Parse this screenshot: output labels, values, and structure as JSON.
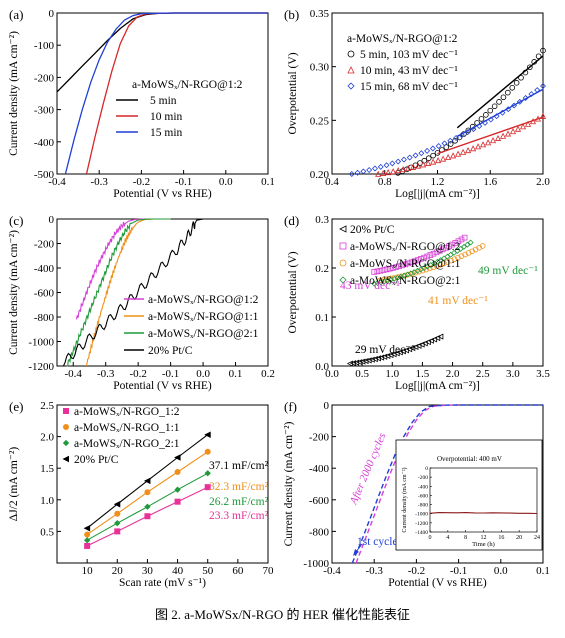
{
  "caption": "图 2. a-MoWSx/N-RGO 的 HER 催化性能表征",
  "chart_data": [
    {
      "id": "a",
      "panel_label": "(a)",
      "type": "line",
      "xlabel": "Potential (V vs RHE)",
      "ylabel": "Current density (mA cm⁻²)",
      "xlim": [
        -0.4,
        0.1
      ],
      "ylim": [
        -500,
        0
      ],
      "xticks": [
        -0.4,
        -0.3,
        -0.2,
        -0.1,
        0.0,
        0.1
      ],
      "yticks": [
        -500,
        -400,
        -300,
        -200,
        -100,
        0
      ],
      "legend_title": "a-MoWSₓ/N-RGO@1:2",
      "series": [
        {
          "name": "5 min",
          "color": "#000000",
          "x": [
            -0.4,
            -0.37,
            -0.34,
            -0.31,
            -0.28,
            -0.25,
            -0.22,
            -0.19,
            -0.16,
            -0.12,
            -0.08,
            0.0,
            0.1
          ],
          "y": [
            -245,
            -205,
            -165,
            -125,
            -85,
            -48,
            -18,
            -5,
            -1,
            0,
            0,
            0,
            0
          ]
        },
        {
          "name": "10 min",
          "color": "#d62728",
          "x": [
            -0.33,
            -0.31,
            -0.29,
            -0.27,
            -0.25,
            -0.23,
            -0.21,
            -0.19,
            -0.16,
            -0.12,
            0.0,
            0.1
          ],
          "y": [
            -500,
            -385,
            -280,
            -180,
            -95,
            -40,
            -12,
            -3,
            -1,
            0,
            0,
            0
          ]
        },
        {
          "name": "15 min",
          "color": "#1f3fd6",
          "x": [
            -0.38,
            -0.36,
            -0.34,
            -0.32,
            -0.3,
            -0.28,
            -0.26,
            -0.24,
            -0.22,
            -0.2,
            -0.17,
            -0.12,
            0.0,
            0.1
          ],
          "y": [
            -500,
            -395,
            -300,
            -215,
            -145,
            -90,
            -50,
            -22,
            -8,
            -2,
            -1,
            0,
            0,
            0
          ]
        }
      ]
    },
    {
      "id": "b",
      "panel_label": "(b)",
      "type": "scatter",
      "xlabel": "Log[|j|(mA cm⁻²)]",
      "ylabel": "Overpotential (V)",
      "xlim": [
        0.4,
        2.0
      ],
      "ylim": [
        0.2,
        0.35
      ],
      "xticks": [
        0.4,
        0.8,
        1.2,
        1.6,
        2.0
      ],
      "yticks": [
        0.2,
        0.25,
        0.3,
        0.35
      ],
      "legend_title": "a-MoWSₓ/N-RGO@1:2",
      "series": [
        {
          "name": "5 min, 103 mV dec⁻¹",
          "color": "#000000",
          "marker": "circle",
          "x_range": [
            0.9,
            2.0
          ],
          "y_range": [
            0.201,
            0.315
          ],
          "fit_x": [
            1.35,
            2.0
          ],
          "fit_y": [
            0.243,
            0.31
          ]
        },
        {
          "name": "10 min, 43 mV dec⁻¹",
          "color": "#d62728",
          "marker": "triangle",
          "x_range": [
            0.75,
            2.0
          ],
          "y_range": [
            0.2,
            0.254
          ],
          "fit_x": [
            1.2,
            2.0
          ],
          "fit_y": [
            0.219,
            0.253
          ]
        },
        {
          "name": "15 min, 68 mV dec⁻¹",
          "color": "#1f3fd6",
          "marker": "diamond",
          "x_range": [
            0.55,
            2.0
          ],
          "y_range": [
            0.2,
            0.282
          ],
          "fit_x": [
            1.35,
            2.0
          ],
          "fit_y": [
            0.235,
            0.279
          ]
        }
      ]
    },
    {
      "id": "c",
      "panel_label": "(c)",
      "type": "line",
      "xlabel": "Potential (V vs RHE)",
      "ylabel": "Current density (mA cm⁻²)",
      "xlim": [
        -0.45,
        0.2
      ],
      "ylim": [
        -1200,
        0
      ],
      "xticks": [
        -0.4,
        -0.3,
        -0.2,
        -0.1,
        0.0,
        0.1,
        0.2
      ],
      "yticks": [
        -1200,
        -1000,
        -800,
        -600,
        -400,
        -200,
        0
      ],
      "series": [
        {
          "name": "a-MoWSₓ/N-RGO@1:2",
          "color": "#d63fd6",
          "x": [
            -0.39,
            -0.37,
            -0.35,
            -0.33,
            -0.31,
            -0.29,
            -0.27,
            -0.25,
            -0.23,
            -0.21,
            -0.18,
            -0.1
          ],
          "y": [
            -820,
            -680,
            -540,
            -410,
            -300,
            -200,
            -115,
            -55,
            -18,
            -4,
            0,
            0
          ]
        },
        {
          "name": "a-MoWSₓ/N-RGO@1:1",
          "color": "#f0901a",
          "x": [
            -0.36,
            -0.34,
            -0.32,
            -0.3,
            -0.28,
            -0.26,
            -0.24,
            -0.22,
            -0.2,
            -0.18,
            -0.15,
            -0.1
          ],
          "y": [
            -1200,
            -1000,
            -810,
            -630,
            -460,
            -310,
            -180,
            -85,
            -25,
            -5,
            0,
            0
          ]
        },
        {
          "name": "a-MoWSₓ/N-RGO@2:1",
          "color": "#1f9a3a",
          "x": [
            -0.42,
            -0.4,
            -0.38,
            -0.36,
            -0.34,
            -0.32,
            -0.3,
            -0.28,
            -0.26,
            -0.24,
            -0.22,
            -0.2,
            -0.17,
            -0.1
          ],
          "y": [
            -1200,
            -1080,
            -950,
            -820,
            -690,
            -560,
            -430,
            -300,
            -190,
            -100,
            -35,
            -8,
            0,
            0
          ]
        },
        {
          "name": "20% Pt/C",
          "color": "#000000",
          "x": [
            -0.44,
            -0.4,
            -0.36,
            -0.32,
            -0.28,
            -0.24,
            -0.2,
            -0.16,
            -0.12,
            -0.08,
            -0.05,
            -0.03,
            -0.02,
            0.0,
            0.1
          ],
          "y": [
            -1200,
            -1100,
            -1000,
            -900,
            -800,
            -700,
            -590,
            -480,
            -370,
            -250,
            -150,
            -60,
            -10,
            0,
            0
          ]
        }
      ]
    },
    {
      "id": "d",
      "panel_label": "(d)",
      "type": "scatter",
      "xlabel": "Log[|j|(mA cm⁻²)]",
      "ylabel": "Overpotential (V)",
      "xlim": [
        0.0,
        3.5
      ],
      "ylim": [
        0.0,
        0.3
      ],
      "xticks": [
        0.0,
        0.5,
        1.0,
        1.5,
        2.0,
        2.5,
        3.0,
        3.5
      ],
      "yticks": [
        0.0,
        0.1,
        0.2,
        0.3
      ],
      "series": [
        {
          "name": "20% Pt/C",
          "color": "#000000",
          "marker": "triangle-left",
          "x_range": [
            0.3,
            1.8
          ],
          "y_range": [
            0.005,
            0.06
          ],
          "label": "29 mV dec⁻¹"
        },
        {
          "name": "a-MoWSₓ/N-RGO@1:2",
          "color": "#d63fd6",
          "marker": "square",
          "x_range": [
            0.7,
            2.2
          ],
          "y_range": [
            0.192,
            0.262
          ],
          "label": "43 mV dec⁻¹"
        },
        {
          "name": "a-MoWSₓ/N-RGO@1:1",
          "color": "#f0901a",
          "marker": "circle",
          "x_range": [
            0.8,
            2.5
          ],
          "y_range": [
            0.175,
            0.245
          ],
          "label": "41 mV dec⁻¹"
        },
        {
          "name": "a-MoWSₓ/N-RGO@2:1",
          "color": "#1f9a3a",
          "marker": "diamond",
          "x_range": [
            0.7,
            2.3
          ],
          "y_range": [
            0.168,
            0.252
          ],
          "label": "49 mV dec⁻¹"
        }
      ]
    },
    {
      "id": "e",
      "panel_label": "(e)",
      "type": "scatter",
      "xlabel": "Scan rate (mV s⁻¹)",
      "ylabel": "ΔJ/2 (mA cm⁻²)",
      "xlim": [
        0,
        70
      ],
      "ylim": [
        0.0,
        2.5
      ],
      "xticks": [
        10,
        20,
        30,
        40,
        50,
        60,
        70
      ],
      "yticks": [
        0.5,
        1.0,
        1.5,
        2.0,
        2.5
      ],
      "x": [
        10,
        20,
        30,
        40,
        50
      ],
      "series": [
        {
          "name": "a-MoWSₓ/N-RGO_1:2",
          "color": "#e8329a",
          "marker": "square",
          "y": [
            0.27,
            0.5,
            0.74,
            0.97,
            1.2
          ],
          "label": "23.3 mF/cm²"
        },
        {
          "name": "a-MoWSₓ/N-RGO_1:1",
          "color": "#f0901a",
          "marker": "circle",
          "y": [
            0.45,
            0.78,
            1.12,
            1.44,
            1.76
          ],
          "label": "32.3 mF/cm²"
        },
        {
          "name": "a-MoWSₓ/N-RGO_2:1",
          "color": "#1f9a3a",
          "marker": "diamond",
          "y": [
            0.36,
            0.63,
            0.89,
            1.16,
            1.42
          ],
          "label": "26.2 mF/cm²"
        },
        {
          "name": "20% Pt/C",
          "color": "#000000",
          "marker": "triangle-left",
          "y": [
            0.55,
            0.93,
            1.3,
            1.67,
            2.03
          ],
          "label": "37.1 mF/cm²"
        }
      ]
    },
    {
      "id": "f",
      "panel_label": "(f)",
      "type": "line",
      "xlabel": "Potential (V vs RHE)",
      "ylabel": "Current density (mA cm⁻²)",
      "xlim": [
        -0.4,
        0.1
      ],
      "ylim": [
        -1000,
        0
      ],
      "xticks": [
        -0.4,
        -0.3,
        -0.2,
        -0.1,
        0.0,
        0.1
      ],
      "yticks": [
        -1000,
        -800,
        -600,
        -400,
        -200,
        0
      ],
      "series": [
        {
          "name": "1st cycle",
          "color": "#1f3fd6",
          "style": "dashed",
          "x": [
            -0.352,
            -0.33,
            -0.31,
            -0.29,
            -0.27,
            -0.25,
            -0.23,
            -0.21,
            -0.19,
            -0.17,
            -0.14,
            -0.1,
            0.0,
            0.1
          ],
          "y": [
            -1000,
            -860,
            -720,
            -580,
            -440,
            -310,
            -200,
            -110,
            -45,
            -10,
            -1,
            0,
            0,
            0
          ]
        },
        {
          "name": "After 2000 cycles",
          "color": "#d63fd6",
          "style": "dashed",
          "x": [
            -0.343,
            -0.32,
            -0.3,
            -0.28,
            -0.26,
            -0.24,
            -0.22,
            -0.2,
            -0.18,
            -0.16,
            -0.13,
            -0.1
          ],
          "y": [
            -1000,
            -840,
            -700,
            -560,
            -420,
            -290,
            -180,
            -95,
            -35,
            -8,
            -1,
            0
          ]
        }
      ],
      "inset": {
        "annotation": "Overpotential: 400 mV",
        "xlabel": "Time (h)",
        "ylabel": "Current density (mA cm⁻²)",
        "xlim": [
          0,
          24
        ],
        "ylim": [
          -1400,
          0
        ],
        "xticks": [
          0,
          4,
          8,
          12,
          16,
          20,
          24
        ],
        "yticks": [
          -1400,
          -1200,
          -1000,
          -800,
          -600,
          -400,
          -200,
          0
        ],
        "color": "#8b1a1a",
        "x": [
          0,
          2,
          4,
          6,
          8,
          10,
          12,
          14,
          16,
          18,
          20,
          22,
          24
        ],
        "y": [
          -990,
          -975,
          -978,
          -980,
          -976,
          -982,
          -985,
          -980,
          -983,
          -986,
          -990,
          -992,
          -995
        ]
      }
    }
  ]
}
